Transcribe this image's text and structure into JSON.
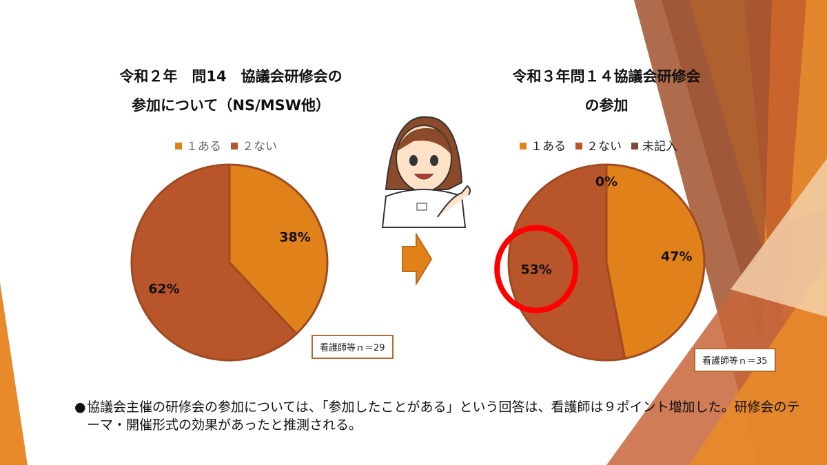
{
  "colors": {
    "accent": "#e0811a",
    "brown": "#b8552b",
    "dark": "#7a4a35",
    "highlight": "#ff0000"
  },
  "chart_data": [
    {
      "type": "pie",
      "title_line1": "令和２年　問14　協議会研修会の",
      "title_line2": "参加について（NS/MSW他）",
      "categories": [
        "１ある",
        "２ない"
      ],
      "values": [
        38,
        62
      ],
      "labels": [
        "38%",
        "62%"
      ],
      "colors": [
        "#e0811a",
        "#b8552b"
      ],
      "legend": "top",
      "note": "看護師等ｎ＝29"
    },
    {
      "type": "pie",
      "title_line1": "令和３年問１４協議会研修会",
      "title_line2": "の参加",
      "categories": [
        "１ある",
        "２ない",
        "未記入"
      ],
      "values": [
        47,
        53,
        0
      ],
      "labels": [
        "47%",
        "53%",
        "0%"
      ],
      "colors": [
        "#e0811a",
        "#b8552b",
        "#7a4a35"
      ],
      "legend": "top",
      "note": "看護師等ｎ＝35",
      "highlighted": "２ない"
    }
  ],
  "arrow_icon": "right-arrow",
  "illustration": "nurse-pointing",
  "note": {
    "bullet": "●",
    "text": "協議会主催の研修会の参加については、「参加したことがある」という回答は、看護師は９ポイント増加した。研修会のテーマ・開催形式の効果があったと推測される。"
  }
}
